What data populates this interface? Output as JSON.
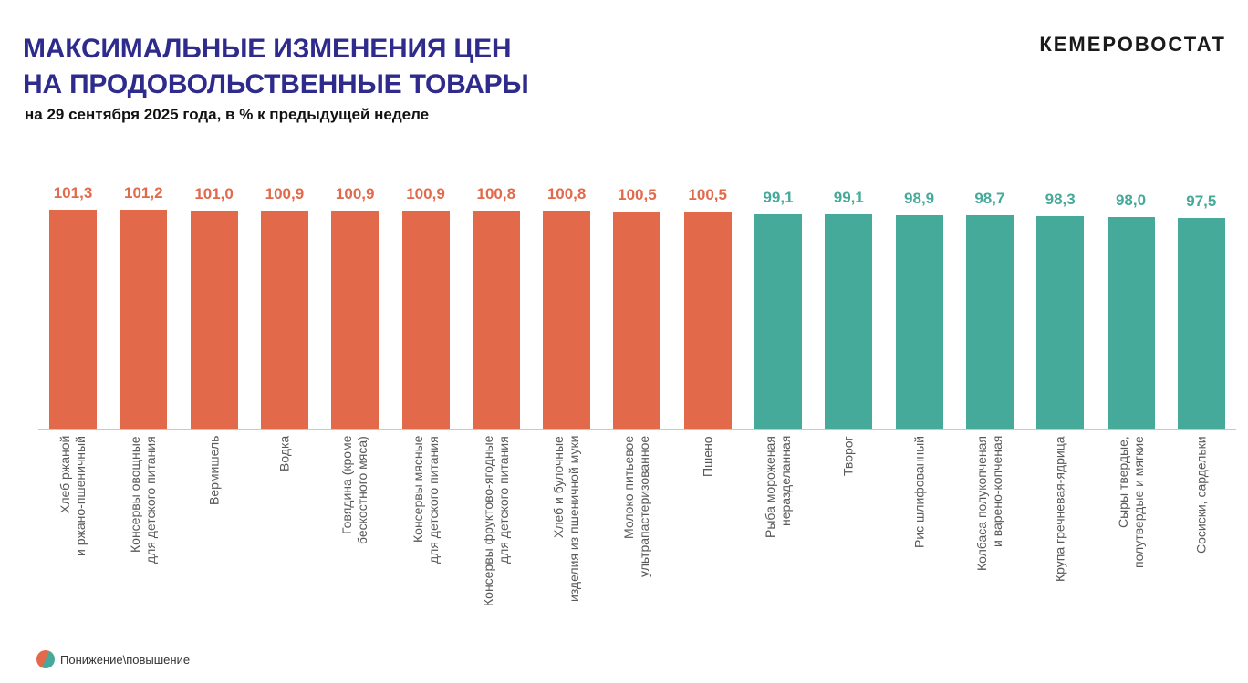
{
  "header": {
    "title_line1": "МАКСИМАЛЬНЫЕ ИЗМЕНЕНИЯ ЦЕН",
    "title_line2": "НА ПРОДОВОЛЬСТВЕННЫЕ ТОВАРЫ",
    "subtitle": "на 29 сентября 2025 года, в % к предыдущей неделе",
    "logo": "КЕМЕРОВОСТАТ"
  },
  "legend": {
    "label": "Понижение\\повышение"
  },
  "colors": {
    "increase": "#E2694A",
    "decrease": "#45AA99",
    "title": "#2E2B8C"
  },
  "chart_data": {
    "type": "bar",
    "title": "Максимальные изменения цен на продовольственные товары",
    "ylim": [
      0,
      101.3
    ],
    "grid": false,
    "legend_placement": "bottom-left",
    "categories": [
      "Хлеб ржаной\nи ржано-пшеничный",
      "Консервы овощные\nдля детского питания",
      "Вермишель",
      "Водка",
      "Говядина (кроме\nбескостного мяса)",
      "Консервы мясные\nдля детского питания",
      "Консервы фруктово-ягодные\nдля детского питания",
      "Хлеб и булочные\nизделия из пшеничной муки",
      "Молоко питьевое\nультрапастеризованное",
      "Пшено",
      "Рыба мороженая\nнеразделанная",
      "Творог",
      "Рис шлифованный",
      "Колбаса полукопченая\nи варено-копченая",
      "Крупа гречневая-ядрица",
      "Сыры твердые,\nполутвердые и мягкие",
      "Сосиски, сардельки"
    ],
    "values": [
      101.3,
      101.2,
      101.0,
      100.9,
      100.9,
      100.9,
      100.8,
      100.8,
      100.5,
      100.5,
      99.1,
      99.1,
      98.9,
      98.7,
      98.3,
      98.0,
      97.5
    ],
    "value_labels": [
      "101,3",
      "101,2",
      "101,0",
      "100,9",
      "100,9",
      "100,9",
      "100,8",
      "100,8",
      "100,5",
      "100,5",
      "99,1",
      "99,1",
      "98,9",
      "98,7",
      "98,3",
      "98,0",
      "97,5"
    ]
  }
}
